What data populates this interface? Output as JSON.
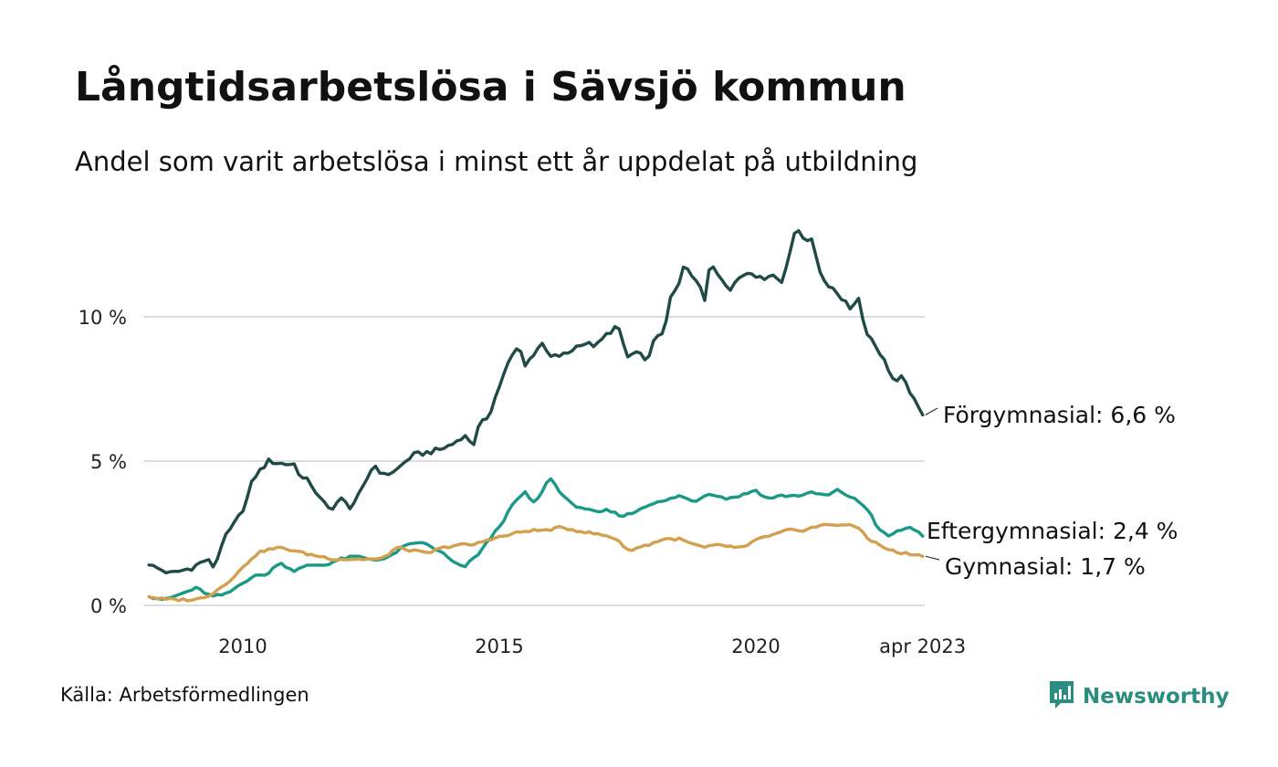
{
  "title": "Långtidsarbetslösa i Sävsjö kommun",
  "subtitle": "Andel som varit arbetslösa i minst ett år uppdelat på utbildning",
  "source": "Källa: Arbetsförmedlingen",
  "brand": {
    "name": "Newsworthy",
    "icon": "newsworthy-logo-icon",
    "color": "#2a8d80"
  },
  "chart_data": {
    "type": "line",
    "x_start": 2008.17,
    "x_step_months": 1,
    "xlim": [
      2008.17,
      2023.25
    ],
    "ylim": [
      0,
      13.5
    ],
    "grid": true,
    "y_ticks": [
      {
        "value": 0,
        "label": "0 %"
      },
      {
        "value": 5,
        "label": "5 %"
      },
      {
        "value": 10,
        "label": "10 %"
      }
    ],
    "x_ticks": [
      {
        "value": 2010,
        "label": "2010"
      },
      {
        "value": 2015,
        "label": "2015"
      },
      {
        "value": 2020,
        "label": "2020"
      },
      {
        "value": 2023.25,
        "label": "apr 2023"
      }
    ],
    "series": [
      {
        "name": "Förgymnasial",
        "end_label": "Förgymnasial: 6,6 %",
        "color": "#1f4a45",
        "keyframes": [
          [
            2008.17,
            1.4
          ],
          [
            2008.6,
            1.1
          ],
          [
            2009.0,
            1.3
          ],
          [
            2009.3,
            1.6
          ],
          [
            2009.45,
            1.3
          ],
          [
            2009.6,
            2.2
          ],
          [
            2009.9,
            3.0
          ],
          [
            2010.05,
            3.5
          ],
          [
            2010.2,
            4.4
          ],
          [
            2010.3,
            4.6
          ],
          [
            2010.5,
            5.0
          ],
          [
            2010.8,
            4.9
          ],
          [
            2011.0,
            4.9
          ],
          [
            2011.15,
            4.4
          ],
          [
            2011.3,
            4.3
          ],
          [
            2011.5,
            3.7
          ],
          [
            2011.7,
            3.3
          ],
          [
            2011.9,
            3.7
          ],
          [
            2012.1,
            3.4
          ],
          [
            2012.3,
            3.9
          ],
          [
            2012.55,
            4.9
          ],
          [
            2012.75,
            4.5
          ],
          [
            2013.0,
            4.7
          ],
          [
            2013.3,
            5.2
          ],
          [
            2013.6,
            5.3
          ],
          [
            2013.85,
            5.4
          ],
          [
            2014.1,
            5.6
          ],
          [
            2014.3,
            5.9
          ],
          [
            2014.5,
            5.6
          ],
          [
            2014.6,
            6.2
          ],
          [
            2014.8,
            6.6
          ],
          [
            2015.0,
            7.6
          ],
          [
            2015.2,
            8.5
          ],
          [
            2015.3,
            8.8
          ],
          [
            2015.4,
            9.0
          ],
          [
            2015.5,
            8.3
          ],
          [
            2015.7,
            8.8
          ],
          [
            2015.8,
            9.1
          ],
          [
            2016.0,
            8.6
          ],
          [
            2016.3,
            8.7
          ],
          [
            2016.6,
            9.1
          ],
          [
            2016.9,
            9.0
          ],
          [
            2017.1,
            9.4
          ],
          [
            2017.3,
            9.7
          ],
          [
            2017.5,
            8.6
          ],
          [
            2017.7,
            8.8
          ],
          [
            2017.85,
            8.4
          ],
          [
            2018.0,
            9.1
          ],
          [
            2018.2,
            9.5
          ],
          [
            2018.35,
            10.7
          ],
          [
            2018.5,
            11.1
          ],
          [
            2018.6,
            11.8
          ],
          [
            2018.75,
            11.4
          ],
          [
            2018.9,
            11.2
          ],
          [
            2019.0,
            10.6
          ],
          [
            2019.1,
            11.8
          ],
          [
            2019.3,
            11.4
          ],
          [
            2019.5,
            11.0
          ],
          [
            2019.7,
            11.4
          ],
          [
            2019.9,
            11.6
          ],
          [
            2020.1,
            11.3
          ],
          [
            2020.3,
            11.5
          ],
          [
            2020.5,
            11.2
          ],
          [
            2020.7,
            12.5
          ],
          [
            2020.8,
            13.1
          ],
          [
            2020.9,
            12.8
          ],
          [
            2021.1,
            12.6
          ],
          [
            2021.3,
            11.3
          ],
          [
            2021.5,
            11.0
          ],
          [
            2021.7,
            10.6
          ],
          [
            2021.85,
            10.3
          ],
          [
            2022.0,
            10.6
          ],
          [
            2022.1,
            9.7
          ],
          [
            2022.3,
            9.0
          ],
          [
            2022.5,
            8.6
          ],
          [
            2022.65,
            7.8
          ],
          [
            2022.85,
            7.9
          ],
          [
            2023.0,
            7.4
          ],
          [
            2023.15,
            7.0
          ],
          [
            2023.25,
            6.6
          ]
        ]
      },
      {
        "name": "Eftergymnasial",
        "end_label": "Eftergymnasial: 2,4 %",
        "color": "#1a9a86",
        "keyframes": [
          [
            2008.17,
            0.3
          ],
          [
            2008.5,
            0.2
          ],
          [
            2008.8,
            0.4
          ],
          [
            2009.1,
            0.6
          ],
          [
            2009.4,
            0.3
          ],
          [
            2009.7,
            0.4
          ],
          [
            2010.0,
            0.8
          ],
          [
            2010.2,
            1.0
          ],
          [
            2010.5,
            1.1
          ],
          [
            2010.7,
            1.5
          ],
          [
            2011.0,
            1.2
          ],
          [
            2011.3,
            1.4
          ],
          [
            2011.6,
            1.4
          ],
          [
            2011.9,
            1.6
          ],
          [
            2012.2,
            1.7
          ],
          [
            2012.5,
            1.6
          ],
          [
            2012.8,
            1.6
          ],
          [
            2013.1,
            2.0
          ],
          [
            2013.4,
            2.2
          ],
          [
            2013.6,
            2.1
          ],
          [
            2013.9,
            1.8
          ],
          [
            2014.1,
            1.5
          ],
          [
            2014.3,
            1.3
          ],
          [
            2014.6,
            1.8
          ],
          [
            2014.9,
            2.5
          ],
          [
            2015.1,
            3.0
          ],
          [
            2015.3,
            3.6
          ],
          [
            2015.5,
            3.9
          ],
          [
            2015.7,
            3.5
          ],
          [
            2015.9,
            4.2
          ],
          [
            2016.0,
            4.4
          ],
          [
            2016.2,
            3.9
          ],
          [
            2016.4,
            3.5
          ],
          [
            2016.6,
            3.4
          ],
          [
            2016.9,
            3.2
          ],
          [
            2017.1,
            3.3
          ],
          [
            2017.4,
            3.1
          ],
          [
            2017.6,
            3.2
          ],
          [
            2017.9,
            3.5
          ],
          [
            2018.2,
            3.6
          ],
          [
            2018.5,
            3.8
          ],
          [
            2018.8,
            3.6
          ],
          [
            2019.1,
            3.9
          ],
          [
            2019.4,
            3.7
          ],
          [
            2019.7,
            3.8
          ],
          [
            2020.0,
            4.0
          ],
          [
            2020.2,
            3.7
          ],
          [
            2020.5,
            3.8
          ],
          [
            2020.8,
            3.8
          ],
          [
            2021.1,
            3.9
          ],
          [
            2021.4,
            3.8
          ],
          [
            2021.6,
            4.0
          ],
          [
            2021.8,
            3.8
          ],
          [
            2022.0,
            3.6
          ],
          [
            2022.2,
            3.3
          ],
          [
            2022.4,
            2.6
          ],
          [
            2022.6,
            2.4
          ],
          [
            2022.8,
            2.6
          ],
          [
            2023.0,
            2.7
          ],
          [
            2023.15,
            2.6
          ],
          [
            2023.25,
            2.4
          ]
        ]
      },
      {
        "name": "Gymnasial",
        "end_label": "Gymnasial: 1,7 %",
        "color": "#d2a04e",
        "keyframes": [
          [
            2008.17,
            0.3
          ],
          [
            2008.5,
            0.2
          ],
          [
            2008.8,
            0.2
          ],
          [
            2009.1,
            0.2
          ],
          [
            2009.4,
            0.4
          ],
          [
            2009.7,
            0.8
          ],
          [
            2010.0,
            1.3
          ],
          [
            2010.2,
            1.7
          ],
          [
            2010.4,
            1.9
          ],
          [
            2010.7,
            2.0
          ],
          [
            2011.0,
            1.9
          ],
          [
            2011.2,
            1.8
          ],
          [
            2011.5,
            1.7
          ],
          [
            2011.8,
            1.6
          ],
          [
            2012.1,
            1.6
          ],
          [
            2012.4,
            1.6
          ],
          [
            2012.7,
            1.6
          ],
          [
            2013.0,
            2.0
          ],
          [
            2013.3,
            1.9
          ],
          [
            2013.6,
            1.8
          ],
          [
            2013.9,
            2.0
          ],
          [
            2014.2,
            2.1
          ],
          [
            2014.5,
            2.1
          ],
          [
            2014.8,
            2.3
          ],
          [
            2015.1,
            2.4
          ],
          [
            2015.3,
            2.5
          ],
          [
            2015.6,
            2.6
          ],
          [
            2015.9,
            2.6
          ],
          [
            2016.2,
            2.7
          ],
          [
            2016.5,
            2.6
          ],
          [
            2016.8,
            2.5
          ],
          [
            2017.1,
            2.4
          ],
          [
            2017.3,
            2.3
          ],
          [
            2017.5,
            1.9
          ],
          [
            2017.7,
            2.0
          ],
          [
            2017.9,
            2.1
          ],
          [
            2018.2,
            2.3
          ],
          [
            2018.5,
            2.3
          ],
          [
            2018.8,
            2.1
          ],
          [
            2019.0,
            2.0
          ],
          [
            2019.3,
            2.1
          ],
          [
            2019.6,
            2.0
          ],
          [
            2019.8,
            2.0
          ],
          [
            2020.0,
            2.3
          ],
          [
            2020.3,
            2.4
          ],
          [
            2020.6,
            2.6
          ],
          [
            2020.9,
            2.6
          ],
          [
            2021.1,
            2.7
          ],
          [
            2021.4,
            2.8
          ],
          [
            2021.7,
            2.8
          ],
          [
            2022.0,
            2.7
          ],
          [
            2022.2,
            2.3
          ],
          [
            2022.5,
            2.0
          ],
          [
            2022.8,
            1.8
          ],
          [
            2023.0,
            1.8
          ],
          [
            2023.25,
            1.7
          ]
        ]
      }
    ]
  }
}
